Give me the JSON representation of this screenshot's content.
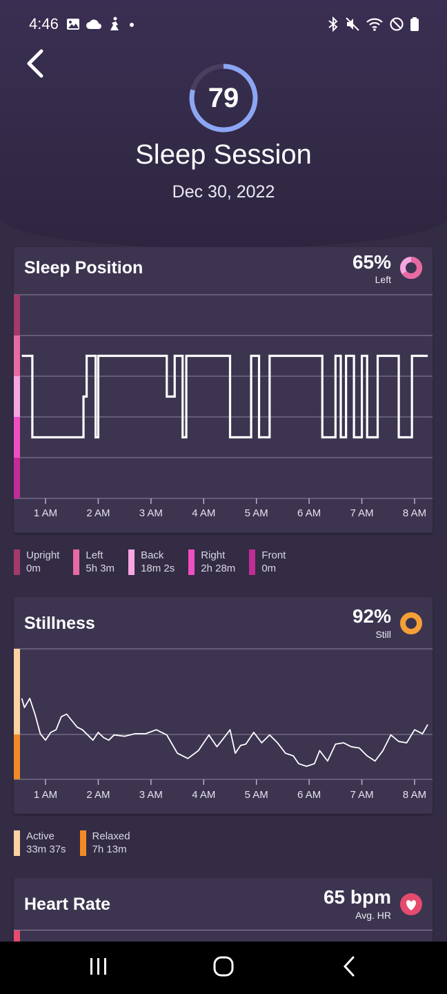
{
  "status_bar": {
    "time": "4:46",
    "left_icons": [
      "image-icon",
      "cloud-icon",
      "figure-icon",
      "dot-icon"
    ],
    "right_icons": [
      "bluetooth-icon",
      "mute-icon",
      "wifi-icon",
      "do-not-disturb-icon",
      "battery-icon"
    ]
  },
  "header": {
    "score": "79",
    "score_fraction": 0.79,
    "title": "Sleep Session",
    "date": "Dec 30, 2022"
  },
  "sleep_position": {
    "title": "Sleep Position",
    "value": "65%",
    "sub": "Left",
    "legend": [
      {
        "label": "Upright",
        "value": "0m",
        "color": "#a23a6a"
      },
      {
        "label": "Left",
        "value": "5h 3m",
        "color": "#e86aa2"
      },
      {
        "label": "Back",
        "value": "18m 2s",
        "color": "#f7a6e2"
      },
      {
        "label": "Right",
        "value": "2h 28m",
        "color": "#ee4fc2"
      },
      {
        "label": "Front",
        "value": "0m",
        "color": "#c12c96"
      }
    ],
    "chart_data": {
      "type": "line",
      "x_ticks": [
        "1 AM",
        "2 AM",
        "3 AM",
        "4 AM",
        "5 AM",
        "6 AM",
        "7 AM",
        "8 AM"
      ],
      "y_categories": [
        "Upright",
        "Left",
        "Back",
        "Right",
        "Front"
      ],
      "x_range_hours": [
        0.55,
        8.25
      ],
      "steps": [
        [
          0.55,
          "Left"
        ],
        [
          0.75,
          "Right"
        ],
        [
          1.72,
          "Back"
        ],
        [
          1.78,
          "Left"
        ],
        [
          1.95,
          "Right"
        ],
        [
          2.0,
          "Left"
        ],
        [
          3.3,
          "Back"
        ],
        [
          3.45,
          "Left"
        ],
        [
          3.6,
          "Right"
        ],
        [
          3.67,
          "Left"
        ],
        [
          4.5,
          "Right"
        ],
        [
          4.9,
          "Left"
        ],
        [
          5.05,
          "Right"
        ],
        [
          5.25,
          "Left"
        ],
        [
          6.25,
          "Right"
        ],
        [
          6.5,
          "Left"
        ],
        [
          6.6,
          "Right"
        ],
        [
          6.7,
          "Left"
        ],
        [
          6.85,
          "Right"
        ],
        [
          7.0,
          "Left"
        ],
        [
          7.1,
          "Right"
        ],
        [
          7.3,
          "Left"
        ],
        [
          7.7,
          "Right"
        ],
        [
          7.95,
          "Left"
        ],
        [
          8.25,
          "Left"
        ]
      ]
    }
  },
  "stillness": {
    "title": "Stillness",
    "value": "92%",
    "sub": "Still",
    "legend": [
      {
        "label": "Active",
        "value": "33m 37s",
        "color": "#fbd2a2"
      },
      {
        "label": "Relaxed",
        "value": "7h 13m",
        "color": "#f28a25"
      }
    ],
    "chart_data": {
      "type": "line",
      "x_ticks": [
        "1 AM",
        "2 AM",
        "3 AM",
        "4 AM",
        "5 AM",
        "6 AM",
        "7 AM",
        "8 AM"
      ],
      "x_range_hours": [
        0.55,
        8.25
      ],
      "y_range": [
        0,
        100
      ],
      "x": [
        0.55,
        0.6,
        0.7,
        0.8,
        0.9,
        1.0,
        1.1,
        1.2,
        1.3,
        1.4,
        1.5,
        1.6,
        1.7,
        1.8,
        1.9,
        2.0,
        2.1,
        2.2,
        2.3,
        2.5,
        2.7,
        2.9,
        3.1,
        3.3,
        3.5,
        3.7,
        3.9,
        4.1,
        4.25,
        4.35,
        4.5,
        4.6,
        4.7,
        4.8,
        4.95,
        5.1,
        5.25,
        5.4,
        5.55,
        5.7,
        5.8,
        5.95,
        6.1,
        6.2,
        6.35,
        6.5,
        6.65,
        6.8,
        6.95,
        7.1,
        7.25,
        7.4,
        7.55,
        7.7,
        7.85,
        8.0,
        8.15,
        8.25
      ],
      "y": [
        62,
        55,
        62,
        50,
        35,
        30,
        36,
        38,
        48,
        50,
        45,
        40,
        38,
        34,
        30,
        36,
        32,
        30,
        34,
        33,
        35,
        35,
        38,
        34,
        20,
        16,
        22,
        34,
        25,
        30,
        38,
        20,
        26,
        27,
        36,
        28,
        34,
        28,
        20,
        18,
        12,
        10,
        12,
        22,
        14,
        27,
        28,
        25,
        24,
        18,
        14,
        22,
        34,
        29,
        28,
        38,
        35,
        42
      ]
    }
  },
  "heart_rate": {
    "title": "Heart Rate",
    "value": "65 bpm",
    "sub": "Avg. HR"
  },
  "colors": {
    "background": "#332c44",
    "card": "#3d3450",
    "score_ring": "#8ca6f4",
    "stillness_icon": "#f5a036",
    "heart_icon": "#e54b6f"
  }
}
